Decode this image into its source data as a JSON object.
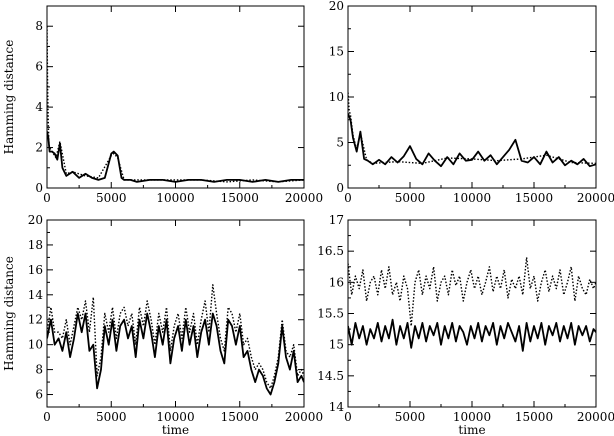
{
  "chart_data": [
    {
      "type": "line",
      "position": "top-left",
      "xlabel": "",
      "ylabel": "Hamming distance",
      "xlim": [
        0,
        20000
      ],
      "ylim": [
        0,
        9
      ],
      "xticks": [
        0,
        5000,
        10000,
        15000,
        20000
      ],
      "yticks": [
        0,
        2,
        4,
        6,
        8
      ],
      "grid": false,
      "series": [
        {
          "style": "solid",
          "x": [
            0,
            100,
            200,
            300,
            400,
            600,
            800,
            1000,
            1200,
            1500,
            2000,
            2500,
            3000,
            3500,
            4000,
            4500,
            5000,
            5200,
            5500,
            5800,
            6000,
            6500,
            7000,
            8000,
            9000,
            10000,
            11000,
            12000,
            13000,
            14000,
            15000,
            16000,
            17000,
            18000,
            19000,
            20000
          ],
          "values": [
            2.8,
            2.5,
            1.8,
            1.8,
            1.8,
            1.7,
            1.4,
            2.2,
            1.0,
            0.6,
            0.8,
            0.5,
            0.7,
            0.5,
            0.4,
            0.5,
            1.7,
            1.8,
            1.6,
            0.5,
            0.4,
            0.4,
            0.3,
            0.4,
            0.4,
            0.3,
            0.4,
            0.4,
            0.3,
            0.4,
            0.4,
            0.3,
            0.4,
            0.3,
            0.4,
            0.4
          ]
        },
        {
          "style": "dotted",
          "x": [
            0,
            50,
            100,
            150,
            200,
            300,
            500,
            700,
            1000,
            1500,
            2000,
            3000,
            4000,
            5000,
            5200,
            5500,
            6000,
            8000,
            10000,
            12000,
            14000,
            16000,
            18000,
            20000
          ],
          "values": [
            8.0,
            5.0,
            3.2,
            2.2,
            2.0,
            1.9,
            1.7,
            1.5,
            2.3,
            0.7,
            0.8,
            0.6,
            0.5,
            1.6,
            1.7,
            1.5,
            0.4,
            0.4,
            0.4,
            0.4,
            0.3,
            0.4,
            0.3,
            0.4
          ]
        }
      ]
    },
    {
      "type": "line",
      "position": "top-right",
      "xlabel": "",
      "ylabel": "",
      "xlim": [
        0,
        20000
      ],
      "ylim": [
        0,
        20
      ],
      "xticks": [
        0,
        5000,
        10000,
        15000,
        20000
      ],
      "yticks": [
        0,
        5,
        10,
        15,
        20
      ],
      "grid": false,
      "series": [
        {
          "style": "solid",
          "x": [
            0,
            200,
            400,
            700,
            1000,
            1300,
            1600,
            2000,
            2500,
            3000,
            3500,
            4000,
            4500,
            5000,
            5500,
            6000,
            6500,
            7000,
            7500,
            8000,
            8500,
            9000,
            9500,
            10000,
            10500,
            11000,
            11500,
            12000,
            12500,
            13000,
            13500,
            14000,
            14500,
            15000,
            15500,
            16000,
            16500,
            17000,
            17500,
            18000,
            18500,
            19000,
            19500,
            20000
          ],
          "values": [
            8.2,
            7.5,
            5.5,
            4.0,
            6.2,
            3.2,
            3.0,
            2.6,
            3.1,
            2.6,
            3.4,
            2.8,
            3.5,
            4.6,
            3.2,
            2.6,
            3.8,
            3.0,
            2.4,
            3.4,
            2.6,
            3.8,
            3.0,
            3.1,
            4.0,
            3.0,
            3.6,
            2.6,
            3.4,
            4.2,
            5.3,
            3.0,
            2.8,
            3.4,
            2.6,
            4.0,
            2.8,
            3.4,
            2.5,
            3.0,
            2.6,
            3.2,
            2.4,
            2.6
          ]
        },
        {
          "style": "dotted",
          "x": [
            0,
            100,
            200,
            400,
            700,
            1000,
            1500,
            2000,
            4000,
            6000,
            8000,
            10000,
            12000,
            14000,
            16000,
            18000,
            20000
          ],
          "values": [
            10.5,
            8.5,
            8.0,
            5.8,
            4.2,
            6.0,
            3.1,
            2.7,
            2.9,
            2.7,
            3.3,
            3.2,
            3.0,
            3.2,
            3.6,
            2.8,
            2.7
          ]
        }
      ]
    },
    {
      "type": "line",
      "position": "bottom-left",
      "xlabel": "time",
      "ylabel": "Hamming distance",
      "xlim": [
        0,
        20000
      ],
      "ylim": [
        5,
        20
      ],
      "xticks": [
        0,
        5000,
        10000,
        15000,
        20000
      ],
      "yticks": [
        6,
        8,
        10,
        12,
        14,
        16,
        18,
        20
      ],
      "grid": false,
      "series": [
        {
          "style": "solid",
          "x": [
            0,
            300,
            600,
            900,
            1200,
            1500,
            1800,
            2100,
            2400,
            2700,
            3000,
            3300,
            3600,
            3900,
            4200,
            4500,
            4800,
            5100,
            5400,
            5700,
            6000,
            6300,
            6600,
            6900,
            7200,
            7500,
            7800,
            8100,
            8400,
            8700,
            9000,
            9300,
            9600,
            9900,
            10200,
            10500,
            10800,
            11100,
            11400,
            11700,
            12000,
            12300,
            12600,
            12900,
            13200,
            13500,
            13800,
            14100,
            14400,
            14700,
            15000,
            15300,
            15600,
            15900,
            16200,
            16500,
            16800,
            17100,
            17400,
            17700,
            18000,
            18300,
            18600,
            18900,
            19200,
            19500,
            19800,
            20000
          ],
          "values": [
            10.5,
            12.0,
            10.0,
            10.5,
            9.5,
            11.0,
            9.0,
            10.5,
            12.5,
            11.0,
            12.5,
            9.5,
            10.0,
            6.5,
            8.0,
            11.5,
            10.0,
            12.0,
            9.5,
            11.5,
            12.0,
            10.5,
            11.5,
            9.0,
            12.0,
            10.5,
            12.5,
            11.0,
            9.0,
            11.5,
            10.0,
            12.0,
            8.5,
            10.5,
            11.5,
            9.5,
            12.0,
            10.0,
            11.5,
            9.0,
            11.0,
            12.0,
            10.0,
            12.5,
            11.5,
            9.5,
            8.5,
            12.0,
            11.5,
            10.0,
            11.5,
            9.0,
            9.5,
            8.0,
            7.0,
            8.0,
            7.5,
            6.5,
            6.0,
            7.0,
            8.5,
            11.5,
            9.0,
            8.0,
            9.5,
            7.0,
            7.5,
            7.0
          ]
        },
        {
          "style": "dotted",
          "x": [
            0,
            300,
            600,
            900,
            1200,
            1500,
            1800,
            2100,
            2400,
            2700,
            3000,
            3300,
            3600,
            3900,
            4200,
            4500,
            4800,
            5100,
            5400,
            5700,
            6000,
            6300,
            6600,
            6900,
            7200,
            7500,
            7800,
            8100,
            8400,
            8700,
            9000,
            9300,
            9600,
            9900,
            10200,
            10500,
            10800,
            11100,
            11400,
            11700,
            12000,
            12300,
            12600,
            12900,
            13200,
            13500,
            13800,
            14100,
            14400,
            14700,
            15000,
            15300,
            15600,
            15900,
            16200,
            16500,
            16800,
            17100,
            17400,
            17700,
            18000,
            18300,
            18600,
            18900,
            19200,
            19500,
            19800,
            20000
          ],
          "values": [
            11.0,
            13.0,
            11.0,
            11.0,
            10.5,
            12.0,
            10.0,
            11.5,
            13.0,
            12.0,
            13.5,
            11.0,
            13.8,
            7.5,
            9.0,
            12.5,
            11.0,
            13.0,
            10.5,
            12.5,
            13.0,
            11.5,
            12.5,
            10.0,
            13.0,
            11.5,
            13.5,
            12.0,
            10.0,
            12.5,
            11.0,
            13.0,
            9.5,
            11.5,
            12.5,
            10.5,
            13.0,
            11.0,
            12.5,
            10.0,
            12.0,
            13.5,
            11.0,
            14.8,
            12.5,
            10.5,
            9.5,
            13.0,
            12.5,
            11.0,
            12.5,
            10.0,
            10.5,
            9.0,
            8.0,
            8.5,
            8.0,
            7.0,
            6.5,
            7.5,
            9.0,
            12.0,
            9.5,
            9.0,
            10.0,
            7.5,
            8.0,
            7.5
          ]
        }
      ]
    },
    {
      "type": "line",
      "position": "bottom-right",
      "xlabel": "time",
      "ylabel": "",
      "xlim": [
        0,
        20000
      ],
      "ylim": [
        14,
        17
      ],
      "xticks": [
        0,
        5000,
        10000,
        15000,
        20000
      ],
      "yticks": [
        14,
        14.5,
        15,
        15.5,
        16,
        16.5,
        17
      ],
      "grid": false,
      "series": [
        {
          "style": "solid",
          "x": [
            0,
            300,
            600,
            900,
            1200,
            1500,
            1800,
            2100,
            2400,
            2700,
            3000,
            3300,
            3600,
            3900,
            4200,
            4500,
            4800,
            5100,
            5400,
            5700,
            6000,
            6300,
            6600,
            6900,
            7200,
            7500,
            7800,
            8100,
            8400,
            8700,
            9000,
            9300,
            9600,
            9900,
            10200,
            10500,
            10800,
            11100,
            11400,
            11700,
            12000,
            12300,
            12600,
            12900,
            13200,
            13500,
            13800,
            14100,
            14400,
            14700,
            15000,
            15300,
            15600,
            15900,
            16200,
            16500,
            16800,
            17100,
            17400,
            17700,
            18000,
            18300,
            18600,
            18900,
            19200,
            19500,
            19800,
            20000
          ],
          "values": [
            15.3,
            15.0,
            15.35,
            15.1,
            15.3,
            15.0,
            15.25,
            15.1,
            15.35,
            15.05,
            15.3,
            15.1,
            15.4,
            15.0,
            15.3,
            15.1,
            15.35,
            14.95,
            15.3,
            15.1,
            15.35,
            15.05,
            15.3,
            15.15,
            15.35,
            15.0,
            15.3,
            15.1,
            15.35,
            15.05,
            15.3,
            15.2,
            15.0,
            15.3,
            15.1,
            15.35,
            15.05,
            15.3,
            15.15,
            15.35,
            15.0,
            15.3,
            15.1,
            15.35,
            15.2,
            15.05,
            15.3,
            14.9,
            15.35,
            15.05,
            15.3,
            15.1,
            15.35,
            15.0,
            15.3,
            15.15,
            15.35,
            15.05,
            15.3,
            15.1,
            15.35,
            15.0,
            15.3,
            15.15,
            15.3,
            15.05,
            15.25,
            15.2
          ]
        },
        {
          "style": "dotted",
          "x": [
            0,
            300,
            600,
            900,
            1200,
            1500,
            1800,
            2100,
            2400,
            2700,
            3000,
            3300,
            3600,
            3900,
            4200,
            4500,
            4800,
            5100,
            5400,
            5700,
            6000,
            6300,
            6600,
            6900,
            7200,
            7500,
            7800,
            8100,
            8400,
            8700,
            9000,
            9300,
            9600,
            9900,
            10200,
            10500,
            10800,
            11100,
            11400,
            11700,
            12000,
            12300,
            12600,
            12900,
            13200,
            13500,
            13800,
            14100,
            14400,
            14700,
            15000,
            15300,
            15600,
            15900,
            16200,
            16500,
            16800,
            17100,
            17400,
            17700,
            18000,
            18300,
            18600,
            18900,
            19200,
            19500,
            19800,
            20000
          ],
          "values": [
            16.3,
            15.8,
            16.1,
            15.9,
            16.2,
            15.7,
            16.0,
            16.1,
            15.8,
            16.2,
            15.9,
            16.25,
            15.8,
            16.0,
            15.7,
            16.1,
            15.9,
            15.3,
            16.0,
            16.2,
            15.8,
            16.1,
            15.9,
            16.25,
            15.7,
            16.0,
            16.1,
            15.8,
            16.2,
            15.95,
            16.1,
            15.7,
            16.0,
            16.2,
            15.9,
            16.1,
            15.8,
            16.0,
            16.25,
            15.85,
            16.1,
            15.9,
            16.2,
            15.75,
            16.05,
            15.9,
            16.1,
            15.8,
            16.4,
            15.9,
            16.1,
            15.7,
            16.0,
            16.2,
            15.85,
            16.1,
            15.9,
            16.2,
            15.8,
            16.0,
            16.25,
            15.7,
            16.1,
            15.9,
            15.8,
            16.05,
            15.9,
            16.0
          ]
        }
      ]
    }
  ]
}
